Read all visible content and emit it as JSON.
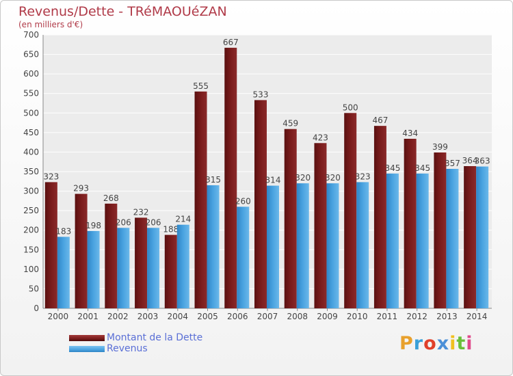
{
  "header": {
    "title": "Revenus/Dette - TRéMAOUéZAN",
    "subtitle": "(en milliers d'€)"
  },
  "legend": {
    "items": [
      {
        "label": "Montant de la Dette",
        "color": "#7a1c1c"
      },
      {
        "label": "Revenus",
        "color": "#4aa3e0"
      }
    ]
  },
  "logo": {
    "letters": [
      "P",
      "r",
      "o",
      "x",
      "i",
      "t",
      "i"
    ],
    "colors": [
      "#e8a02c",
      "#3aa0d8",
      "#e0402a",
      "#4a8fd8",
      "#f0c020",
      "#6abf3a",
      "#e04a8a"
    ]
  },
  "chart_data": {
    "type": "bar",
    "title": "Revenus/Dette - TRéMAOUéZAN",
    "subtitle": "(en milliers d'€)",
    "categories": [
      "2000",
      "2001",
      "2002",
      "2003",
      "2004",
      "2005",
      "2006",
      "2007",
      "2008",
      "2009",
      "2010",
      "2011",
      "2012",
      "2013",
      "2014"
    ],
    "series": [
      {
        "name": "Montant de la Dette",
        "color": "#7a1c1c",
        "values": [
          323,
          293,
          268,
          232,
          188,
          555,
          667,
          533,
          459,
          423,
          500,
          467,
          434,
          399,
          364
        ]
      },
      {
        "name": "Revenus",
        "color": "#4aa3e0",
        "values": [
          183,
          198,
          206,
          206,
          214,
          315,
          260,
          314,
          320,
          320,
          323,
          345,
          345,
          357,
          363
        ]
      }
    ],
    "yticks": [
      0,
      50,
      100,
      150,
      200,
      250,
      300,
      350,
      400,
      450,
      500,
      550,
      600,
      650,
      700
    ],
    "ylim": [
      0,
      700
    ],
    "grid": true,
    "legend_position": "bottom-left"
  }
}
